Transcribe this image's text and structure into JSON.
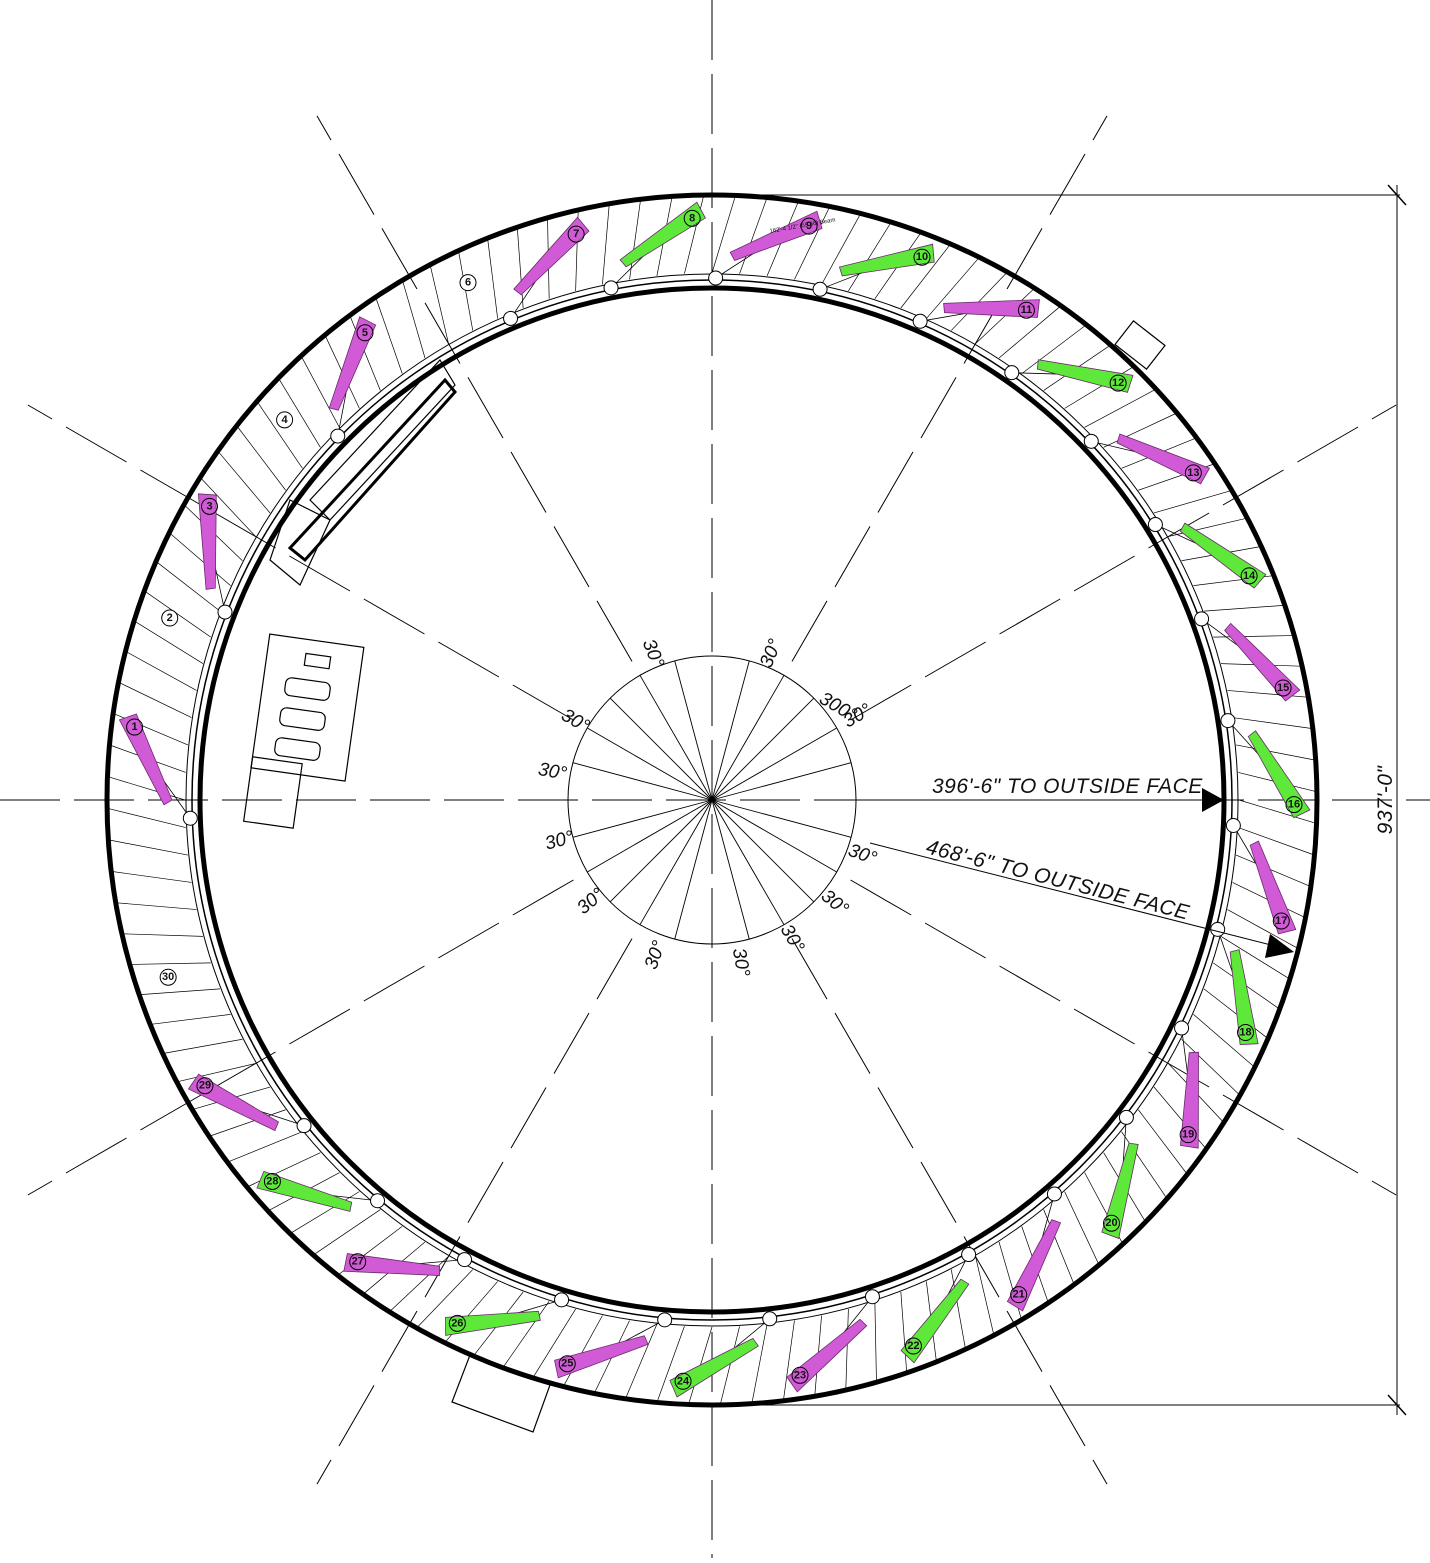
{
  "drawing": {
    "center_mark": "300°",
    "angle_step_label": "30°",
    "dim_inner_radius": "396'-6\" TO OUTSIDE FACE",
    "dim_outer_radius": "468'-6\" TO OUTSIDE FACE",
    "dim_overall_diameter": "937'-0\"",
    "note_small": "162'-4 1/2\" (55.66) Beam",
    "colors": {
      "magenta": "#d15bd6",
      "green": "#5ee83a",
      "line": "#000000"
    }
  },
  "beamlines": [
    {
      "num": "1",
      "color": "magenta"
    },
    {
      "num": "3",
      "color": "magenta"
    },
    {
      "num": "5",
      "color": "magenta"
    },
    {
      "num": "7",
      "color": "magenta"
    },
    {
      "num": "8",
      "color": "green"
    },
    {
      "num": "9",
      "color": "magenta"
    },
    {
      "num": "10",
      "color": "green"
    },
    {
      "num": "11",
      "color": "magenta"
    },
    {
      "num": "12",
      "color": "green"
    },
    {
      "num": "13",
      "color": "magenta"
    },
    {
      "num": "14",
      "color": "green"
    },
    {
      "num": "15",
      "color": "magenta"
    },
    {
      "num": "16",
      "color": "green"
    },
    {
      "num": "17",
      "color": "magenta"
    },
    {
      "num": "18",
      "color": "green"
    },
    {
      "num": "19",
      "color": "magenta"
    },
    {
      "num": "20",
      "color": "green"
    },
    {
      "num": "21",
      "color": "magenta"
    },
    {
      "num": "22",
      "color": "green"
    },
    {
      "num": "23",
      "color": "magenta"
    },
    {
      "num": "24",
      "color": "green"
    },
    {
      "num": "25",
      "color": "magenta"
    },
    {
      "num": "26",
      "color": "green"
    },
    {
      "num": "27",
      "color": "magenta"
    },
    {
      "num": "28",
      "color": "green"
    },
    {
      "num": "29",
      "color": "magenta"
    }
  ],
  "open_sectors": [
    "2",
    "4",
    "6",
    "30"
  ]
}
